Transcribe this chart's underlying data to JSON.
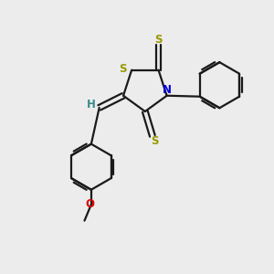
{
  "bg_color": "#ececec",
  "bond_color": "#1a1a1a",
  "S_color": "#999900",
  "N_color": "#0000dd",
  "O_color": "#dd0000",
  "H_color": "#3a8a8a",
  "line_width": 1.6,
  "figsize": [
    3.0,
    3.0
  ],
  "dpi": 100,
  "xlim": [
    0,
    10
  ],
  "ylim": [
    0,
    10
  ]
}
